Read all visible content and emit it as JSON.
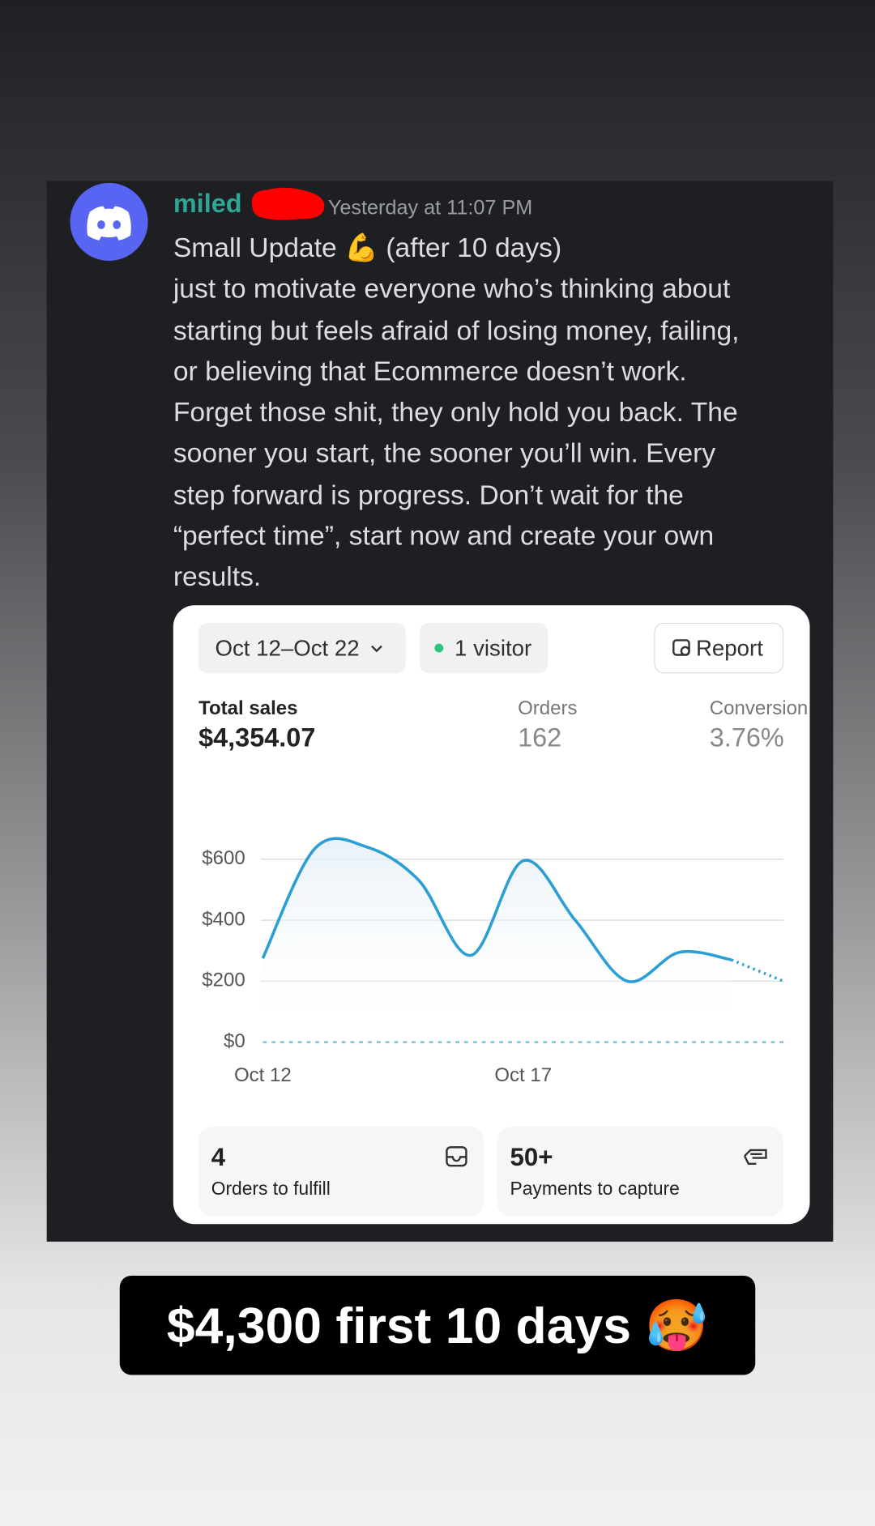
{
  "message": {
    "username": "miled",
    "timestamp": "Yesterday at 11:07 PM",
    "title": "Small Update 💪 (after 10 days)",
    "body_lines": [
      "just to motivate everyone who’s thinking about",
      "starting but feels afraid of losing money, failing,",
      "or believing that Ecommerce doesn’t work.",
      "Forget those shit, they only hold you back. The",
      "sooner you start, the sooner you’ll win. Every",
      "step forward is progress. Don’t wait for the",
      "“perfect time”, start now and create your own",
      "results."
    ]
  },
  "card": {
    "date_range": "Oct 12–Oct 22",
    "visitors": "1 visitor",
    "report": "Report",
    "metrics": [
      {
        "label": "Total sales",
        "value": "$4,354.07"
      },
      {
        "label": "Orders",
        "value": "162"
      },
      {
        "label": "Conversion",
        "value": "3.76%"
      }
    ],
    "tiles": [
      {
        "value": "4",
        "label": "Orders to fulfill"
      },
      {
        "value": "50+",
        "label": "Payments to capture"
      }
    ]
  },
  "chart_data": {
    "type": "line",
    "categories": [
      "Oct 12",
      null,
      null,
      null,
      null,
      "Oct 17",
      null,
      null,
      null,
      null,
      null
    ],
    "series": [
      {
        "color": "#2b9fd3",
        "values": [
          275,
          635,
          640,
          530,
          285,
          595,
          400,
          200,
          295,
          270,
          200
        ],
        "projected_last": true
      },
      {
        "color": "#7fc0e0",
        "values": [
          0,
          0,
          0,
          0,
          0,
          0,
          0,
          0,
          0,
          0,
          0
        ],
        "style": "dashed"
      }
    ],
    "ylim": [
      0,
      600
    ],
    "yticks": [
      {
        "value": 0,
        "label": "$0"
      },
      {
        "value": 200,
        "label": "$200"
      },
      {
        "value": 400,
        "label": "$400"
      },
      {
        "value": 600,
        "label": "$600"
      }
    ],
    "grid": true
  },
  "caption": "$4,300 first 10 days 🥵"
}
